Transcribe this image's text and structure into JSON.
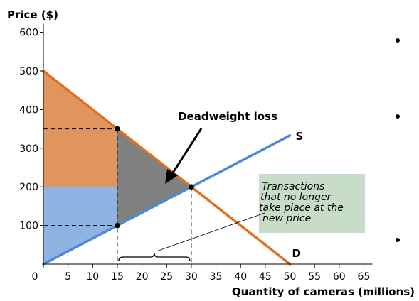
{
  "chart_data": {
    "type": "line",
    "xlabel": "Quantity of cameras (millions)",
    "ylabel": "Price ($)",
    "xlim": [
      0,
      65
    ],
    "ylim": [
      0,
      600
    ],
    "x_ticks": [
      0,
      5,
      10,
      15,
      20,
      25,
      30,
      35,
      40,
      45,
      50,
      55,
      60,
      65
    ],
    "y_ticks": [
      100,
      200,
      300,
      400,
      500,
      600
    ],
    "series": [
      {
        "name": "D",
        "color": "#e07020",
        "points": [
          [
            0,
            500
          ],
          [
            50,
            0
          ]
        ]
      },
      {
        "name": "S",
        "color": "#4a8ad8",
        "points": [
          [
            0,
            0
          ],
          [
            50,
            333
          ]
        ]
      }
    ],
    "equilibrium": {
      "quantity": 30,
      "price": 200
    },
    "new_quantity": 15,
    "buyer_price": 350,
    "seller_price": 100,
    "regions": [
      {
        "id": "consumer",
        "color": "#e0955e",
        "polygon": [
          [
            0,
            500
          ],
          [
            15,
            350
          ],
          [
            15,
            200
          ],
          [
            0,
            200
          ]
        ]
      },
      {
        "id": "producer",
        "color": "#8fb4e3",
        "polygon": [
          [
            0,
            0
          ],
          [
            15,
            100
          ],
          [
            15,
            200
          ],
          [
            0,
            200
          ]
        ]
      },
      {
        "id": "deadweight",
        "color": "#808080",
        "polygon": [
          [
            15,
            350
          ],
          [
            15,
            100
          ],
          [
            30,
            200
          ]
        ]
      }
    ],
    "annotations": {
      "deadweight_label": "Deadweight loss",
      "transactions_lines": [
        "Transactions",
        "that no longer",
        "take place at the",
        "new price"
      ],
      "transactions_box_color": "#c7ddc7"
    }
  }
}
